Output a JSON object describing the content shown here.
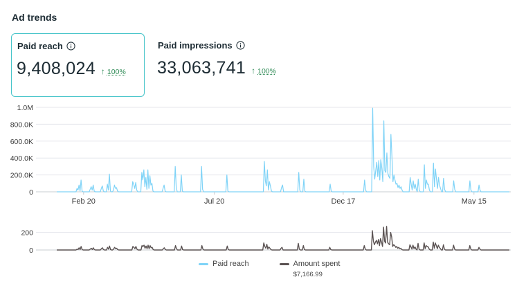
{
  "section_title": "Ad trends",
  "metrics": [
    {
      "label": "Paid reach",
      "value": "9,408,024",
      "change": "100%",
      "selected": true
    },
    {
      "label": "Paid impressions",
      "value": "33,063,741",
      "change": "100%",
      "selected": false
    }
  ],
  "colors": {
    "reach": "#7fd3f7",
    "spent": "#5a5252",
    "accent": "#45c4c9",
    "positive": "#2e8a55",
    "grid": "#e4e6eb"
  },
  "chart_data": [
    {
      "type": "line",
      "series": [
        {
          "name": "Paid reach",
          "values": [
            0,
            0,
            0,
            0,
            0,
            0,
            0,
            0,
            0,
            0,
            0,
            0,
            0,
            0,
            0,
            0,
            0,
            0,
            0,
            0,
            40000,
            20000,
            80000,
            10000,
            140000,
            10000,
            0,
            0,
            0,
            0,
            0,
            0,
            0,
            30000,
            60000,
            20000,
            80000,
            10000,
            0,
            0,
            0,
            0,
            0,
            0,
            40000,
            70000,
            10000,
            0,
            0,
            0,
            90000,
            20000,
            210000,
            10000,
            0,
            0,
            20000,
            80000,
            40000,
            50000,
            10000,
            0,
            0,
            0,
            0,
            0,
            0,
            0,
            0,
            0,
            0,
            0,
            0,
            0,
            0,
            120000,
            90000,
            40000,
            110000,
            20000,
            0,
            0,
            0,
            0,
            230000,
            140000,
            260000,
            60000,
            170000,
            30000,
            260000,
            40000,
            190000,
            80000,
            100000,
            10000,
            0,
            0,
            0,
            0,
            0,
            0,
            0,
            0,
            0,
            40000,
            80000,
            10000,
            0,
            0,
            0,
            0,
            0,
            0,
            0,
            0,
            0,
            300000,
            50000,
            0,
            0,
            0,
            0,
            200000,
            10000,
            0,
            0,
            0,
            0,
            0,
            0,
            0,
            0,
            0,
            0,
            0,
            0,
            0,
            0,
            0,
            0,
            0,
            0,
            300000,
            30000,
            0,
            0,
            0,
            0,
            0,
            0,
            0,
            0,
            0,
            0,
            0,
            0,
            0,
            0,
            0,
            0,
            0,
            0,
            0,
            0,
            0,
            0,
            0,
            200000,
            10000,
            0,
            0,
            0,
            0,
            0,
            0,
            0,
            0,
            0,
            0,
            0,
            0,
            0,
            0,
            0,
            0,
            0,
            0,
            0,
            0,
            0,
            0,
            0,
            0,
            0,
            0,
            0,
            0,
            0,
            0,
            0,
            0,
            0,
            0,
            0,
            360000,
            130000,
            70000,
            260000,
            20000,
            120000,
            70000,
            10000,
            0,
            0,
            0,
            0,
            0,
            0,
            0,
            0,
            0,
            50000,
            80000,
            0,
            0,
            0,
            0,
            0,
            0,
            0,
            0,
            0,
            0,
            0,
            0,
            0,
            0,
            0,
            230000,
            20000,
            0,
            0,
            0,
            150000,
            10000,
            0,
            0,
            0,
            0,
            0,
            0,
            0,
            0,
            0,
            0,
            0,
            0,
            0,
            0,
            0,
            0,
            0,
            0,
            0,
            0,
            0,
            0,
            0,
            0,
            90000,
            10000,
            0,
            0,
            0,
            0,
            0,
            0,
            0,
            0,
            0,
            0,
            0,
            0,
            0,
            0,
            0,
            0,
            0,
            0,
            0,
            0,
            0,
            0,
            0,
            0,
            0,
            0,
            0,
            0,
            0,
            0,
            0,
            0,
            140000,
            20000,
            0,
            0,
            0,
            0,
            0,
            0,
            990000,
            300000,
            150000,
            250000,
            350000,
            180000,
            370000,
            140000,
            380000,
            280000,
            120000,
            840000,
            250000,
            230000,
            460000,
            220000,
            180000,
            160000,
            680000,
            420000,
            120000,
            200000,
            140000,
            90000,
            100000,
            50000,
            80000,
            40000,
            60000,
            20000,
            0,
            0,
            0,
            0,
            0,
            0,
            0,
            170000,
            90000,
            20000,
            130000,
            40000,
            90000,
            30000,
            0,
            150000,
            20000,
            0,
            0,
            0,
            0,
            320000,
            40000,
            140000,
            90000,
            90000,
            20000,
            0,
            0,
            0,
            340000,
            60000,
            270000,
            150000,
            40000,
            170000,
            80000,
            40000,
            0,
            0,
            160000,
            30000,
            0,
            0,
            0,
            0,
            0,
            0,
            0,
            0,
            130000,
            30000,
            0,
            0,
            0,
            0,
            0,
            0,
            0,
            0,
            0,
            0,
            0,
            0,
            0,
            0,
            130000,
            20000,
            0,
            0,
            0,
            0,
            0,
            0,
            0,
            80000,
            20000,
            0,
            0,
            0,
            0,
            0,
            0,
            0,
            0,
            0,
            0,
            0,
            0,
            0,
            0,
            0,
            0,
            0,
            0,
            0,
            0,
            0,
            0,
            0,
            0,
            0,
            0,
            0,
            0,
            0
          ]
        }
      ],
      "yticks": [
        "0",
        "200.0K",
        "400.0K",
        "600.0K",
        "800.0K",
        "1.0M"
      ],
      "ylim": [
        0,
        1000000
      ],
      "xticks": [
        "Feb 20",
        "Jul 20",
        "Dec 17",
        "May 15"
      ],
      "xtick_positions": [
        0.095,
        0.372,
        0.645,
        0.922
      ],
      "grid": true
    },
    {
      "type": "line",
      "series": [
        {
          "name": "Amount spent",
          "values": [
            0,
            0,
            0,
            0,
            0,
            0,
            0,
            0,
            0,
            0,
            0,
            0,
            0,
            0,
            0,
            0,
            0,
            0,
            0,
            0,
            10,
            5,
            25,
            5,
            40,
            5,
            0,
            0,
            0,
            0,
            0,
            0,
            0,
            10,
            20,
            5,
            25,
            5,
            0,
            0,
            0,
            0,
            0,
            0,
            15,
            25,
            5,
            0,
            0,
            0,
            30,
            10,
            45,
            5,
            0,
            0,
            10,
            30,
            15,
            20,
            5,
            0,
            0,
            0,
            0,
            0,
            0,
            0,
            0,
            0,
            0,
            0,
            0,
            0,
            0,
            40,
            30,
            15,
            40,
            10,
            0,
            0,
            0,
            0,
            50,
            40,
            55,
            20,
            45,
            15,
            55,
            15,
            50,
            25,
            30,
            5,
            0,
            0,
            0,
            0,
            0,
            0,
            0,
            0,
            0,
            15,
            25,
            5,
            0,
            0,
            0,
            0,
            0,
            0,
            0,
            0,
            0,
            50,
            15,
            0,
            0,
            0,
            0,
            45,
            5,
            0,
            0,
            0,
            0,
            0,
            0,
            0,
            0,
            0,
            0,
            0,
            0,
            0,
            0,
            0,
            0,
            0,
            0,
            50,
            10,
            0,
            0,
            0,
            0,
            0,
            0,
            0,
            0,
            0,
            0,
            0,
            0,
            0,
            0,
            0,
            0,
            0,
            0,
            0,
            0,
            0,
            0,
            0,
            45,
            5,
            0,
            0,
            0,
            0,
            0,
            0,
            0,
            0,
            0,
            0,
            0,
            0,
            0,
            0,
            0,
            0,
            0,
            0,
            0,
            0,
            0,
            0,
            0,
            0,
            0,
            0,
            0,
            0,
            0,
            0,
            0,
            0,
            0,
            0,
            80,
            40,
            20,
            65,
            10,
            35,
            20,
            5,
            0,
            0,
            0,
            0,
            0,
            0,
            0,
            0,
            0,
            20,
            30,
            0,
            0,
            0,
            0,
            0,
            0,
            0,
            0,
            0,
            0,
            0,
            0,
            0,
            0,
            0,
            75,
            10,
            0,
            0,
            0,
            50,
            5,
            0,
            0,
            0,
            0,
            0,
            0,
            0,
            0,
            0,
            0,
            0,
            0,
            0,
            0,
            0,
            0,
            0,
            0,
            0,
            0,
            0,
            0,
            0,
            0,
            30,
            5,
            0,
            0,
            0,
            0,
            0,
            0,
            0,
            0,
            0,
            0,
            0,
            0,
            0,
            0,
            0,
            0,
            0,
            0,
            0,
            0,
            0,
            0,
            0,
            0,
            0,
            0,
            0,
            0,
            0,
            0,
            0,
            0,
            50,
            10,
            0,
            0,
            0,
            0,
            0,
            0,
            220,
            100,
            60,
            90,
            110,
            70,
            120,
            50,
            130,
            90,
            40,
            260,
            100,
            80,
            270,
            90,
            70,
            60,
            200,
            150,
            40,
            60,
            50,
            30,
            40,
            20,
            30,
            15,
            20,
            5,
            0,
            0,
            0,
            0,
            0,
            0,
            0,
            60,
            35,
            10,
            55,
            15,
            35,
            10,
            0,
            75,
            10,
            0,
            0,
            0,
            0,
            80,
            15,
            50,
            40,
            35,
            10,
            0,
            0,
            0,
            90,
            20,
            80,
            50,
            15,
            55,
            30,
            15,
            0,
            0,
            60,
            10,
            0,
            0,
            0,
            0,
            0,
            0,
            0,
            0,
            55,
            10,
            0,
            0,
            0,
            0,
            0,
            0,
            0,
            0,
            0,
            0,
            0,
            0,
            0,
            0,
            50,
            10,
            0,
            0,
            0,
            0,
            0,
            0,
            0,
            30,
            10,
            0,
            0,
            0,
            0,
            0,
            0,
            0,
            0,
            0,
            0,
            0,
            0,
            0,
            0,
            0,
            0,
            0,
            0,
            0,
            0,
            0,
            0,
            0,
            0,
            0,
            0,
            0,
            0,
            0
          ]
        }
      ],
      "yticks": [
        "0",
        "200"
      ],
      "ylim": [
        0,
        300
      ],
      "grid": true
    }
  ],
  "legend": {
    "reach_label": "Paid reach",
    "spent_label": "Amount spent",
    "spent_total": "$7,166.99"
  }
}
